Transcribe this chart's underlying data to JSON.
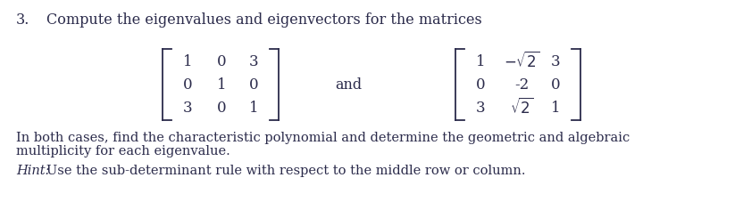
{
  "title_number": "3.",
  "title_text": "Compute the eigenvalues and eigenvectors for the matrices",
  "matrix1_rows": [
    [
      "1",
      "0",
      "3"
    ],
    [
      "0",
      "1",
      "0"
    ],
    [
      "3",
      "0",
      "1"
    ]
  ],
  "and_text": "and",
  "matrix2_rows": [
    [
      "1",
      "-\\sqrt{2}",
      "3"
    ],
    [
      "0",
      "-2",
      "0"
    ],
    [
      "3",
      "\\sqrt{2}",
      "1"
    ]
  ],
  "body_line1": "In both cases, find the characteristic polynomial and determine the geometric and algebraic",
  "body_line2": "multiplicity for each eigenvalue.",
  "hint_label": "Hint:",
  "hint_text": "Use the sub-determinant rule with respect to the middle row or column.",
  "bg_color": "#ffffff",
  "text_color": "#2b2b4b",
  "font_size_title": 11.5,
  "font_size_body": 10.5,
  "font_size_matrix": 12,
  "font_size_hint": 10.5
}
